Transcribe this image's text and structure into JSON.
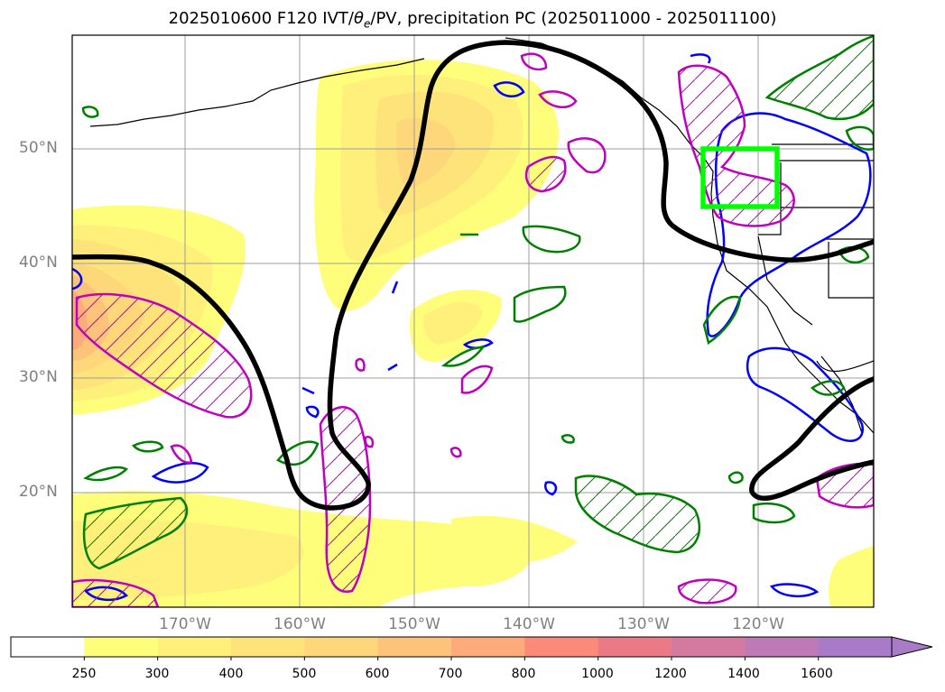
{
  "title": {
    "prefix": "2025010600 F120 IVT/",
    "theta": "θ",
    "theta_sub": "e",
    "suffix": "/PV, precipitation PC (2025011000 - 2025011100)"
  },
  "axes": {
    "lat_labels": [
      "50°N",
      "40°N",
      "30°N",
      "20°N"
    ],
    "lon_labels": [
      "170°W",
      "160°W",
      "150°W",
      "140°W",
      "130°W",
      "120°W"
    ]
  },
  "colorbar": {
    "ticks": [
      "250",
      "300",
      "400",
      "500",
      "600",
      "700",
      "800",
      "1000",
      "1200",
      "1400",
      "1600"
    ],
    "colors": [
      "#ffffff",
      "#fefe7a",
      "#fef07a",
      "#fee27a",
      "#fed77a",
      "#fec37a",
      "#fdab7a",
      "#fc8a7a",
      "#eb7a86",
      "#d47aa0",
      "#bd7ab6",
      "#a87ac8"
    ],
    "extend": "max"
  },
  "legend_colors": {
    "theta_e": "#000000",
    "pv_positive": "#008000",
    "pv_negative": "#0000ff",
    "precip_pc": "#c000c0",
    "box": "#00ff00"
  }
}
